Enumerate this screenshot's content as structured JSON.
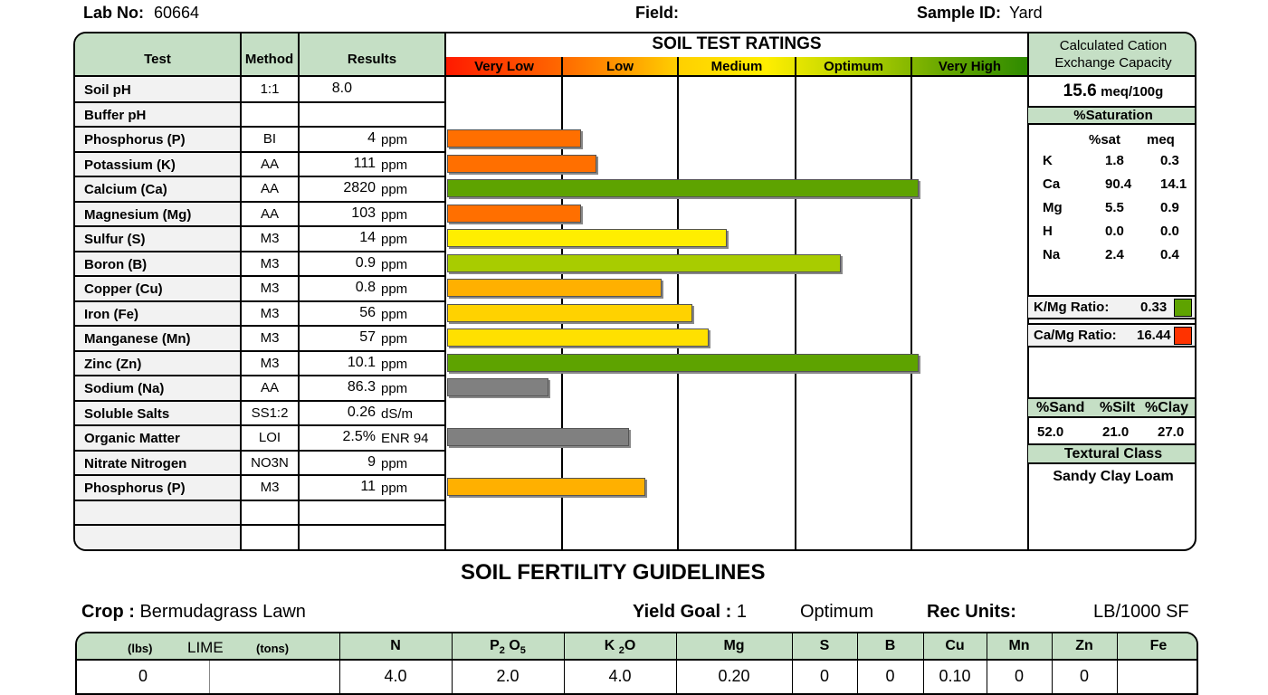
{
  "header": {
    "lab_no_label": "Lab No:",
    "lab_no": "60664",
    "field_label": "Field:",
    "field": "",
    "sample_id_label": "Sample ID:",
    "sample_id": "Yard"
  },
  "table": {
    "col_test": "Test",
    "col_method": "Method",
    "col_results": "Results",
    "ratings_title": "SOIL TEST RATINGS",
    "ratings": [
      "Very Low",
      "Low",
      "Medium",
      "Optimum",
      "Very High"
    ],
    "rows": [
      {
        "test": "Soil pH",
        "method": "1:1",
        "value": "8.0",
        "unit": ""
      },
      {
        "test": "Buffer pH",
        "method": "",
        "value": "",
        "unit": ""
      },
      {
        "test": "Phosphorus (P)",
        "method": "BI",
        "value": "4",
        "unit": "ppm"
      },
      {
        "test": "Potassium (K)",
        "method": "AA",
        "value": "111",
        "unit": "ppm"
      },
      {
        "test": "Calcium (Ca)",
        "method": "AA",
        "value": "2820",
        "unit": "ppm"
      },
      {
        "test": "Magnesium (Mg)",
        "method": "AA",
        "value": "103",
        "unit": "ppm"
      },
      {
        "test": "Sulfur (S)",
        "method": "M3",
        "value": "14",
        "unit": "ppm"
      },
      {
        "test": "Boron (B)",
        "method": "M3",
        "value": "0.9",
        "unit": "ppm"
      },
      {
        "test": "Copper (Cu)",
        "method": "M3",
        "value": "0.8",
        "unit": "ppm"
      },
      {
        "test": "Iron (Fe)",
        "method": "M3",
        "value": "56",
        "unit": "ppm"
      },
      {
        "test": "Manganese (Mn)",
        "method": "M3",
        "value": "57",
        "unit": "ppm"
      },
      {
        "test": "Zinc (Zn)",
        "method": "M3",
        "value": "10.1",
        "unit": "ppm"
      },
      {
        "test": "Sodium (Na)",
        "method": "AA",
        "value": "86.3",
        "unit": "ppm"
      },
      {
        "test": "Soluble Salts",
        "method": "SS1:2",
        "value": "0.26",
        "unit": "dS/m"
      },
      {
        "test": "Organic Matter",
        "method": "LOI",
        "value": "2.5%",
        "unit": "ENR  94"
      },
      {
        "test": "Nitrate Nitrogen",
        "method": "NO3N",
        "value": "9",
        "unit": "ppm"
      },
      {
        "test": "Phosphorus (P)",
        "method": "M3",
        "value": "11",
        "unit": "ppm"
      }
    ],
    "bars": [
      {
        "row": 2,
        "level": 1.15,
        "color": "#ff6f00"
      },
      {
        "row": 3,
        "level": 1.28,
        "color": "#ff6f00"
      },
      {
        "row": 4,
        "level": 4.05,
        "color": "#5ea300"
      },
      {
        "row": 5,
        "level": 1.15,
        "color": "#ff6f00"
      },
      {
        "row": 6,
        "level": 2.4,
        "color": "#ffee00"
      },
      {
        "row": 7,
        "level": 3.38,
        "color": "#a8cc00"
      },
      {
        "row": 8,
        "level": 1.84,
        "color": "#ffb000"
      },
      {
        "row": 9,
        "level": 2.11,
        "color": "#ffd200"
      },
      {
        "row": 10,
        "level": 2.25,
        "color": "#ffe000"
      },
      {
        "row": 11,
        "level": 4.05,
        "color": "#5ea300"
      },
      {
        "row": 12,
        "level": 0.87,
        "color": "#808080"
      },
      {
        "row": 14,
        "level": 1.56,
        "color": "#808080"
      },
      {
        "row": 16,
        "level": 1.7,
        "color": "#ffb000"
      }
    ]
  },
  "cec": {
    "title_line1": "Calculated Cation",
    "title_line2": "Exchange Capacity",
    "value": "15.6",
    "unit": "meq/100g",
    "saturation_title": "%Saturation",
    "col_sat": "%sat",
    "col_meq": "meq",
    "cations": [
      {
        "name": "K",
        "sat": "1.8",
        "meq": "0.3"
      },
      {
        "name": "Ca",
        "sat": "90.4",
        "meq": "14.1"
      },
      {
        "name": "Mg",
        "sat": "5.5",
        "meq": "0.9"
      },
      {
        "name": "H",
        "sat": "0.0",
        "meq": "0.0"
      },
      {
        "name": "Na",
        "sat": "2.4",
        "meq": "0.4"
      }
    ],
    "kmg_label": "K/Mg Ratio:",
    "kmg_value": "0.33",
    "kmg_color": "#5ea300",
    "camg_label": "Ca/Mg Ratio:",
    "camg_value": "16.44",
    "camg_color": "#ff3300",
    "sand_label": "%Sand",
    "silt_label": "%Silt",
    "clay_label": "%Clay",
    "sand": "52.0",
    "silt": "21.0",
    "clay": "27.0",
    "textural_title": "Textural Class",
    "textural_class": "Sandy Clay Loam"
  },
  "guidelines": {
    "title": "SOIL FERTILITY GUIDELINES",
    "crop_label": "Crop :",
    "crop": "Bermudagrass Lawn",
    "yield_label": "Yield Goal :",
    "yield": "1",
    "yield_level": "Optimum",
    "rec_units_label": "Rec Units:",
    "rec_units": "LB/1000 SF",
    "lime_lbs": "(lbs)",
    "lime_label": "LIME",
    "lime_tons": "(tons)",
    "lime_value": "0",
    "n_label": "N",
    "p_label_main": "P",
    "p_sub": "2",
    "p_o": "O",
    "p_sub2": "5",
    "k_label_main": "K",
    "k_sub": "2",
    "k_o": "O",
    "nutrients": [
      {
        "key": "n",
        "value": "4.0"
      },
      {
        "key": "p2o5",
        "value": "2.0"
      },
      {
        "key": "k2o",
        "value": "4.0"
      },
      {
        "name": "Mg",
        "value": "0.20"
      },
      {
        "name": "S",
        "value": "0"
      },
      {
        "name": "B",
        "value": "0"
      },
      {
        "name": "Cu",
        "value": "0.10"
      },
      {
        "name": "Mn",
        "value": "0"
      },
      {
        "name": "Zn",
        "value": "0"
      },
      {
        "name": "Fe",
        "value": ""
      }
    ]
  }
}
